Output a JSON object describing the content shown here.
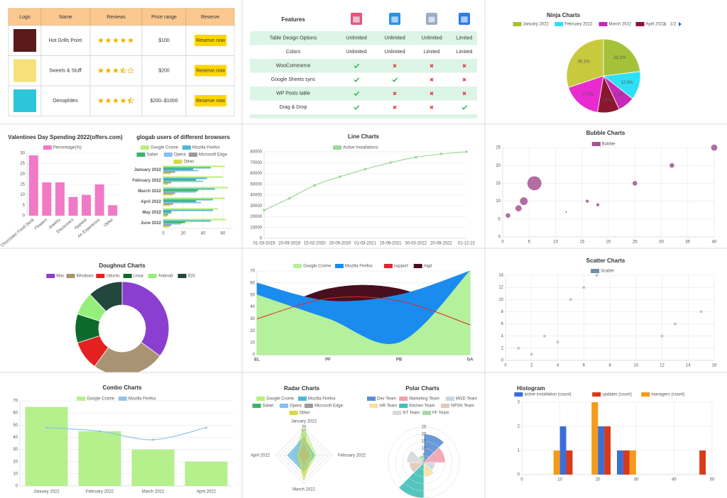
{
  "restaurants": {
    "header": [
      "Logo",
      "Name",
      "Reviews",
      "Price range",
      "Reserve"
    ],
    "button": "Reserve now",
    "rows": [
      {
        "name": "Hot Grills Point",
        "rating": 5,
        "price": "$100"
      },
      {
        "name": "Sweets & Stuff",
        "rating": 3.5,
        "price": "$200"
      },
      {
        "name": "Oenophiles",
        "rating": 4.5,
        "price": "$200–$1000"
      }
    ]
  },
  "features": {
    "title": "Features",
    "rows": [
      {
        "label": "Table Design Options",
        "values": [
          "Unlimited",
          "Unlimited",
          "Unlimited",
          "Limited"
        ]
      },
      {
        "label": "Colors",
        "values": [
          "Unlimited",
          "Unlimited",
          "Limited",
          "Limited"
        ]
      },
      {
        "label": "WooCommerce",
        "values": [
          true,
          false,
          false,
          false
        ]
      },
      {
        "label": "Google Sheets sync",
        "values": [
          true,
          true,
          false,
          false
        ]
      },
      {
        "label": "WP Posts table",
        "values": [
          true,
          false,
          false,
          false
        ]
      },
      {
        "label": "Drag & Drop",
        "values": [
          true,
          false,
          false,
          true
        ]
      }
    ]
  },
  "chart_data": [
    {
      "type": "pie",
      "title": "Ninja Charts",
      "categories": [
        "January 2022",
        "February 2022",
        "March 2022",
        "April 2022",
        null,
        null
      ],
      "values": [
        23.1,
        12.5,
        7.4,
        9.6,
        17.3,
        30.1
      ],
      "value_labels": [
        "23.1%",
        "12.5%",
        "7.4%",
        "9.6%",
        "17.3%",
        "30.1%"
      ],
      "colors": [
        "#a4c238",
        "#2ee0f5",
        "#c52bb8",
        "#8c1630",
        "#e82ad0",
        "#c9c93e"
      ],
      "legend_page": "1/2"
    },
    {
      "type": "bar",
      "title": "Valentines Day Spending 2022(offers.com)",
      "categories": [
        "Chocolate/ Food Desk",
        "Flowers",
        "Jewelry",
        "Electronics",
        "Apparel",
        "An Experience",
        "Other"
      ],
      "series": [
        {
          "name": "Percentage(%)",
          "color": "#f07ac6",
          "values": [
            29,
            16,
            16,
            9,
            10,
            15,
            5
          ]
        }
      ],
      "ylim": [
        0,
        30
      ],
      "yticks": [
        0,
        5,
        10,
        15,
        20,
        25,
        30
      ]
    },
    {
      "type": "hbar",
      "title": "glogab users of different browsers",
      "categories": [
        "January 2022",
        "February 2022",
        "March 2022",
        "April 2022",
        "May 2022",
        "June 2022"
      ],
      "series": [
        {
          "name": "Google Crome",
          "color": "#b8f07a",
          "values": [
            62,
            60,
            65,
            62,
            55,
            63
          ]
        },
        {
          "name": "Mozilla Firefox",
          "color": "#4fb8d8",
          "values": [
            48,
            44,
            52,
            50,
            50,
            48
          ]
        },
        {
          "name": "Safari",
          "color": "#3cb371",
          "values": [
            30,
            33,
            35,
            33,
            8,
            22
          ]
        },
        {
          "name": "Opera",
          "color": "#86bff0",
          "values": [
            35,
            40,
            33,
            38,
            8,
            18
          ]
        },
        {
          "name": "Microsoft Edge",
          "color": "#9a9a9a",
          "values": [
            12,
            8,
            12,
            10,
            5,
            8
          ]
        },
        {
          "name": "Other",
          "color": "#d8d84a",
          "values": [
            8,
            5,
            10,
            7,
            4,
            6
          ]
        }
      ],
      "xlim": [
        0,
        70
      ],
      "xticks": [
        0,
        20,
        40,
        60
      ]
    },
    {
      "type": "line",
      "title": "Line Charts",
      "categories": [
        "01-03-2019",
        "20-09-2019",
        "15-02-2020",
        "20-09-2020",
        "01-03-2021",
        "15-09-2021",
        "30-03-2022",
        "20-09-2022",
        "01-12-22"
      ],
      "series": [
        {
          "name": "Active Installations",
          "color": "#9ed89a",
          "values": [
            26000,
            37000,
            49000,
            57000,
            64000,
            70000,
            75000,
            78000,
            80000
          ]
        }
      ],
      "ylim": [
        0,
        80000
      ],
      "yticks": [
        0,
        10000,
        20000,
        30000,
        40000,
        50000,
        60000,
        70000,
        80000
      ]
    },
    {
      "type": "bubble",
      "title": "Bubble Charts",
      "series": [
        {
          "name": "Bubble",
          "color": "#a45490",
          "x": [
            1,
            3,
            4,
            6,
            12,
            16,
            18,
            25,
            32,
            40
          ],
          "values": [
            6,
            8,
            10,
            15,
            7,
            10,
            9,
            15,
            20,
            25
          ],
          "sizes": [
            3,
            4,
            5,
            9,
            1,
            2,
            2,
            3,
            3,
            4
          ]
        }
      ],
      "xlim": [
        0,
        40
      ],
      "xticks": [
        0,
        5,
        10,
        15,
        20,
        25,
        30,
        35,
        40
      ],
      "ylim": [
        0,
        25
      ],
      "yticks": [
        0,
        5,
        10,
        15,
        20,
        25
      ]
    },
    {
      "type": "doughnut",
      "title": "Doughnut Charts",
      "categories": [
        "Mac",
        "Windows",
        "Ubuntu",
        "Linux",
        "Android",
        "IOS"
      ],
      "values": [
        35,
        25,
        10,
        10,
        8,
        12
      ],
      "colors": [
        "#8a3fd1",
        "#a89472",
        "#e42020",
        "#0b6b2b",
        "#94f07a",
        "#23463d"
      ]
    },
    {
      "type": "area",
      "categories": [
        "EL",
        "PF",
        "PB",
        "GA"
      ],
      "series": [
        {
          "name": "Google Crome",
          "color": "#b5f09c",
          "fill": true,
          "values": [
            50,
            30,
            10,
            70
          ]
        },
        {
          "name": "Mozilla Firefox",
          "color": "#1a8cf0",
          "fill": true,
          "values": [
            60,
            45,
            50,
            70
          ]
        },
        {
          "name": "support",
          "color": "#e02828",
          "fill": false,
          "values": [
            30,
            47,
            45,
            25
          ]
        },
        {
          "name": "mgd",
          "color": "#4a0f1e",
          "fill": true,
          "values": [
            30,
            55,
            55,
            30
          ]
        }
      ],
      "ylim": [
        0,
        70
      ],
      "yticks": [
        0,
        10,
        20,
        30,
        40,
        50,
        60,
        70
      ]
    },
    {
      "type": "scatter",
      "title": "Scatter Charts",
      "series": [
        {
          "name": "Scatter",
          "color": "#6a8fa8",
          "x": [
            1,
            2,
            3,
            4,
            5,
            6,
            7,
            12,
            13,
            15
          ],
          "values": [
            2,
            1,
            4,
            3,
            10,
            12,
            14,
            4,
            6,
            8
          ]
        }
      ],
      "xlim": [
        0,
        16
      ],
      "xticks": [
        0,
        2,
        4,
        6,
        8,
        10,
        12,
        14,
        16
      ],
      "ylim": [
        0,
        14
      ],
      "yticks": [
        0,
        2,
        4,
        6,
        8,
        10,
        12,
        14
      ]
    },
    {
      "type": "combo",
      "title": "Combo Charts",
      "categories": [
        "January 2022",
        "February 2022",
        "March 2022",
        "April 2022"
      ],
      "series": [
        {
          "name": "Google Crome",
          "type": "bar",
          "color": "#b5f08c",
          "values": [
            65,
            45,
            30,
            20
          ]
        },
        {
          "name": "Mozilla Firefox",
          "type": "line",
          "color": "#8ec5ef",
          "values": [
            48,
            45,
            38,
            48
          ]
        }
      ],
      "ylim": [
        0,
        70
      ],
      "yticks": [
        0,
        10,
        20,
        30,
        40,
        50,
        60,
        70
      ]
    },
    {
      "type": "radar",
      "title": "Radar Charts",
      "categories": [
        "January 2022",
        "February 2022",
        "March 2022",
        "April 2022"
      ],
      "series": [
        {
          "name": "Google Crome",
          "color": "#b8f07a",
          "values": [
            70,
            30,
            50,
            25
          ]
        },
        {
          "name": "Mozilla Firefox",
          "color": "#4fb8d8",
          "values": [
            45,
            25,
            40,
            40
          ]
        },
        {
          "name": "Safari",
          "color": "#3cb371",
          "values": [
            30,
            15,
            25,
            12
          ]
        },
        {
          "name": "Opera",
          "color": "#86bff0",
          "values": [
            40,
            20,
            35,
            35
          ]
        },
        {
          "name": "Microsoft Edge",
          "color": "#9a9a9a",
          "values": [
            20,
            10,
            15,
            10
          ]
        },
        {
          "name": "Other",
          "color": "#d8d84a",
          "values": [
            50,
            20,
            60,
            15
          ]
        }
      ],
      "ylim": [
        0,
        70
      ],
      "yticks": [
        0,
        10,
        20,
        30,
        40,
        50,
        60,
        70
      ]
    },
    {
      "type": "polar",
      "title": "Polar Charts",
      "categories": [
        "Dev Team",
        "Marketing Team",
        "MGD Team",
        "HR Team",
        "Kitchen Team",
        "NPSN Team",
        "NT Team",
        "FF Team"
      ],
      "values": [
        20,
        15,
        8,
        10,
        25,
        10,
        12,
        5
      ],
      "colors": [
        "#5a8fd8",
        "#f0a0b0",
        "#c8d8e0",
        "#f8e0a0",
        "#40c0b8",
        "#e0c8b8",
        "#d8d8d8",
        "#a8d8a8"
      ],
      "ylim": [
        0,
        25
      ],
      "yticks": [
        0,
        5,
        10,
        15,
        20,
        25
      ]
    },
    {
      "type": "histogram",
      "title": "Histogram",
      "bins": [
        5,
        10,
        15,
        20,
        25,
        30,
        35,
        40,
        45,
        50
      ],
      "series": [
        {
          "name": "active installation (count)",
          "color": "#3a6fd8",
          "values": [
            0,
            2,
            0,
            2,
            1,
            0,
            0,
            0,
            0
          ]
        },
        {
          "name": "updates (count)",
          "color": "#d83a1a",
          "values": [
            0,
            1,
            0,
            2,
            1,
            0,
            0,
            0,
            1
          ]
        },
        {
          "name": "managers (count)",
          "color": "#f59a1a",
          "values": [
            1,
            0,
            3,
            0,
            1,
            0,
            0,
            0,
            0
          ]
        }
      ],
      "xlim": [
        0,
        50
      ],
      "xticks": [
        0,
        10,
        20,
        30,
        40,
        50
      ],
      "ylim": [
        0,
        3
      ],
      "yticks": [
        0,
        1,
        2,
        3
      ]
    }
  ]
}
